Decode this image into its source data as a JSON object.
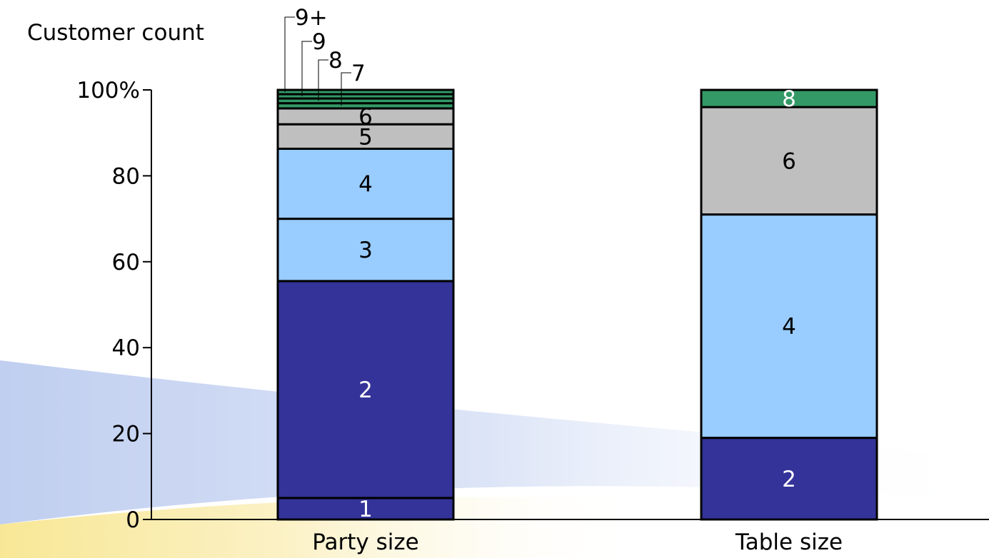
{
  "chart_data": {
    "type": "bar",
    "stacked": true,
    "ylabel": "Customer count",
    "ylim": [
      0,
      100
    ],
    "yticks": [
      0,
      20,
      40,
      60,
      80,
      100
    ],
    "ytick_labels": [
      "0",
      "20",
      "40",
      "60",
      "80",
      "100%"
    ],
    "categories": [
      "Party size",
      "Table size"
    ],
    "stacks": [
      {
        "category": "Party size",
        "segments": [
          {
            "label": "1",
            "value": 5,
            "color": "#333399",
            "label_color": "#ffffff"
          },
          {
            "label": "2",
            "value": 50.5,
            "color": "#333399",
            "label_color": "#ffffff"
          },
          {
            "label": "3",
            "value": 14.5,
            "color": "#99ccff",
            "label_color": "#000000"
          },
          {
            "label": "4",
            "value": 16.3,
            "color": "#99ccff",
            "label_color": "#000000"
          },
          {
            "label": "5",
            "value": 5.7,
            "color": "#bfbfbf",
            "label_color": "#000000"
          },
          {
            "label": "6",
            "value": 3.7,
            "color": "#bfbfbf",
            "label_color": "#000000"
          },
          {
            "label": "7",
            "value": 1.2,
            "color": "#339966",
            "label_color": "#000000",
            "callout": true
          },
          {
            "label": "8",
            "value": 1.1,
            "color": "#339966",
            "label_color": "#000000",
            "callout": true
          },
          {
            "label": "9",
            "value": 1.0,
            "color": "#339966",
            "label_color": "#000000",
            "callout": true
          },
          {
            "label": "9+",
            "value": 1.0,
            "color": "#339966",
            "label_color": "#000000",
            "callout": true
          }
        ]
      },
      {
        "category": "Table size",
        "segments": [
          {
            "label": "2",
            "value": 19,
            "color": "#333399",
            "label_color": "#ffffff"
          },
          {
            "label": "4",
            "value": 52,
            "color": "#99ccff",
            "label_color": "#000000"
          },
          {
            "label": "6",
            "value": 25,
            "color": "#bfbfbf",
            "label_color": "#000000"
          },
          {
            "label": "8",
            "value": 4,
            "color": "#339966",
            "label_color": "#ffffff"
          }
        ]
      }
    ],
    "grid": false,
    "legend": "none"
  }
}
